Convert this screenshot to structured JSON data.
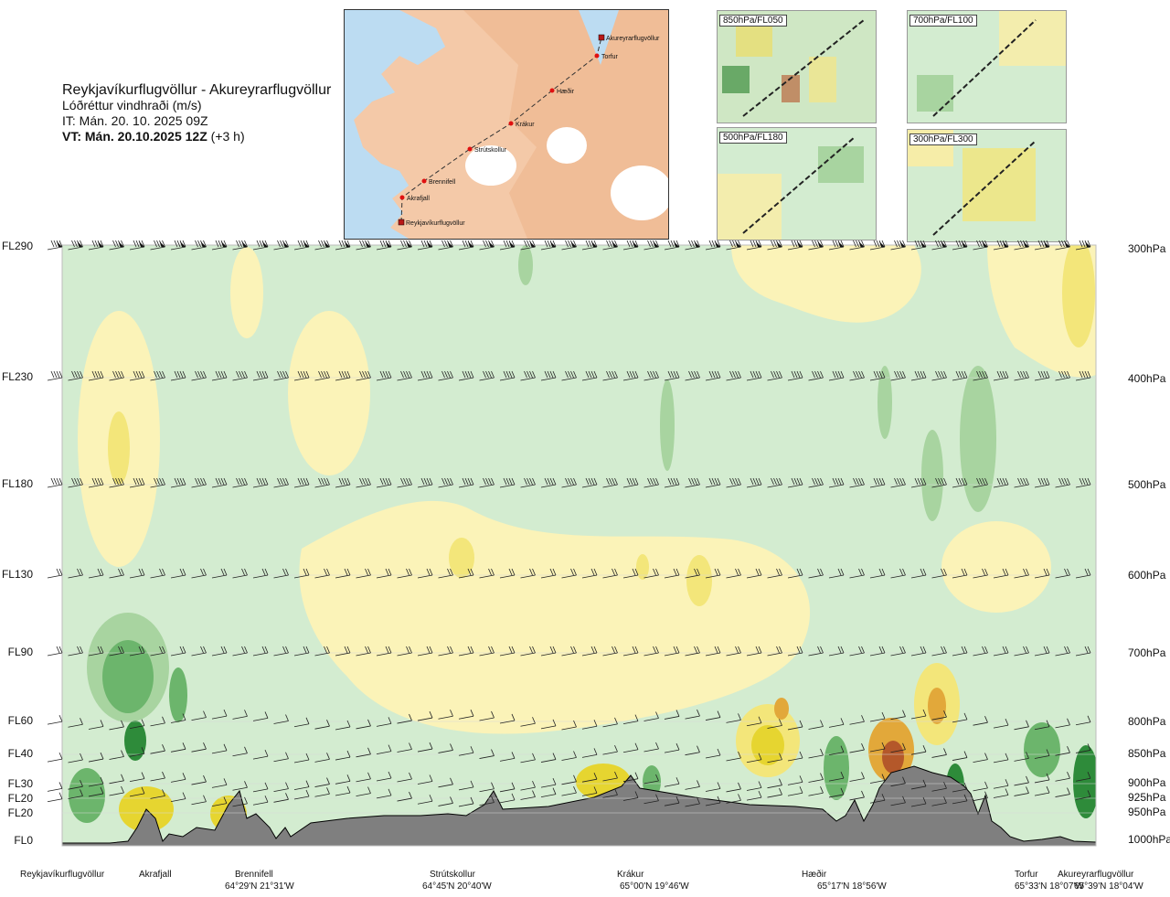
{
  "header": {
    "title": "Reykjavíkurflugvöllur - Akureyrarflugvöllur",
    "subtitle": "Lóðréttur vindhraði (m/s)",
    "issue_time": "IT: Mán. 20. 10. 2025 09Z",
    "valid_time": "VT: Mán. 20.10.2025 12Z",
    "valid_offset": "(+3 h)"
  },
  "map": {
    "route_points": [
      {
        "name": "Reykjavíkurflugvöllur"
      },
      {
        "name": "Akrafjall"
      },
      {
        "name": "Brennifell"
      },
      {
        "name": "Strútskollur"
      },
      {
        "name": "Krákur"
      },
      {
        "name": "Hæðir"
      },
      {
        "name": "Torfur"
      },
      {
        "name": "Akureyrarflugvöllur"
      }
    ]
  },
  "mini_maps": [
    {
      "label": "850hPa/FL050"
    },
    {
      "label": "700hPa/FL100"
    },
    {
      "label": "500hPa/FL180"
    },
    {
      "label": "300hPa/FL300"
    }
  ],
  "chart_data": {
    "type": "heatmap",
    "title": "Lóðréttur vindhraði (m/s)",
    "levels": [
      {
        "fl": "FL290",
        "hpa": "300hPa"
      },
      {
        "fl": "FL230",
        "hpa": "400hPa"
      },
      {
        "fl": "FL180",
        "hpa": "500hPa"
      },
      {
        "fl": "FL130",
        "hpa": "600hPa"
      },
      {
        "fl": "FL90",
        "hpa": "700hPa"
      },
      {
        "fl": "FL60",
        "hpa": "800hPa"
      },
      {
        "fl": "FL40",
        "hpa": "850hPa"
      },
      {
        "fl": "FL30",
        "hpa": "900hPa"
      },
      {
        "fl": "FL20",
        "hpa": "925hPa"
      },
      {
        "fl": "FL20",
        "hpa": "950hPa"
      },
      {
        "fl": "FL0",
        "hpa": "1000hPa"
      }
    ],
    "locations": [
      {
        "name": "Reykjavíkurflugvöllur",
        "coord": ""
      },
      {
        "name": "Akrafjall",
        "coord": ""
      },
      {
        "name": "Brennifell",
        "coord": "64°29'N 21°31'W"
      },
      {
        "name": "Strútskollur",
        "coord": "64°45'N 20°40'W"
      },
      {
        "name": "Krákur",
        "coord": "65°00'N 19°46'W"
      },
      {
        "name": "Hæðir",
        "coord": "65°17'N 18°56'W"
      },
      {
        "name": "Torfur",
        "coord": "65°33'N 18°07'W"
      },
      {
        "name": "Akureyrarflugvöllur",
        "coord": "65°39'N 18°04'W"
      }
    ],
    "colors": {
      "strong_down": "#2e8b3a",
      "down": "#6cb56c",
      "weak_down": "#a8d4a0",
      "slight_down": "#d3ecd0",
      "near_zero": "#f4fbef",
      "slight_up": "#fbf3b8",
      "up": "#f3e67a",
      "strong_up": "#e6d530",
      "stronger_up": "#e2a83a",
      "extreme_up": "#b4582a",
      "terrain": "#7f7f7f"
    }
  }
}
